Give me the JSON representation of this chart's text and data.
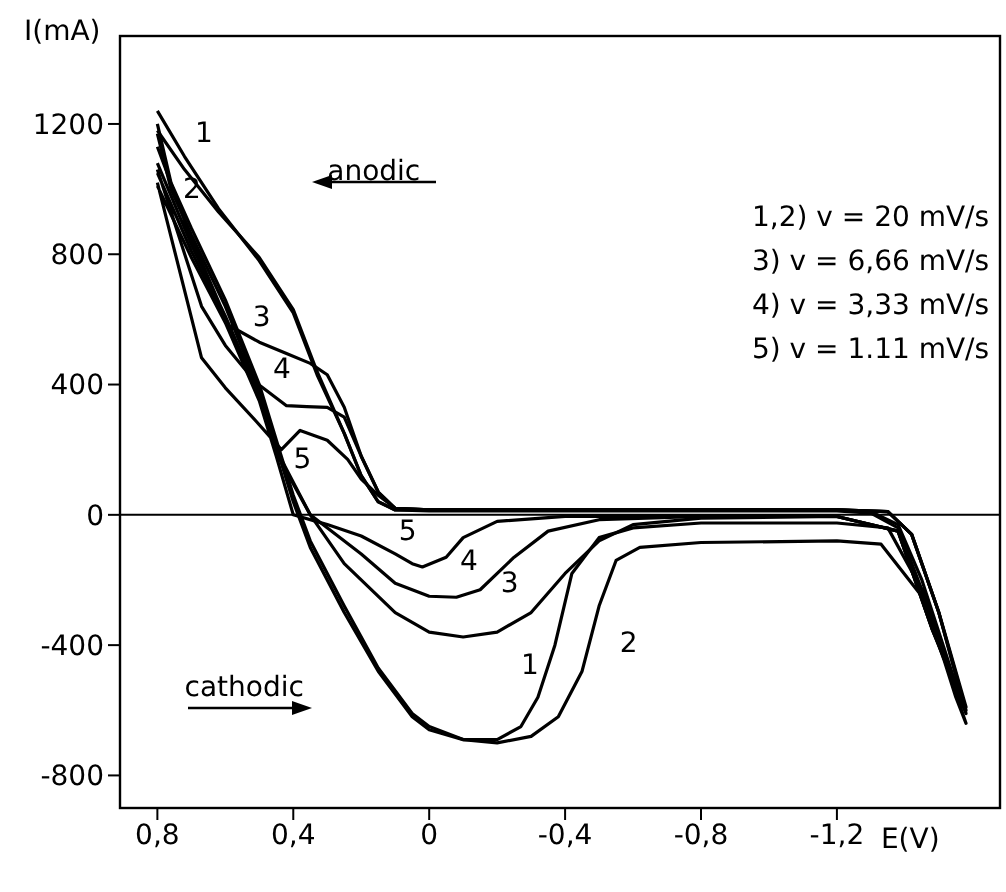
{
  "chart_data": {
    "type": "line",
    "xlabel": "E(V)",
    "ylabel": "I(mA)",
    "xlim": [
      0.91,
      -1.68
    ],
    "ylim": [
      -900,
      1470
    ],
    "xticks": [
      {
        "value": 0.8,
        "label": "0,8"
      },
      {
        "value": 0.4,
        "label": "0,4"
      },
      0,
      {
        "value": -0.4,
        "label": "-0,4"
      },
      {
        "value": -0.8,
        "label": "-0,8"
      },
      {
        "value": -1.2,
        "label": "-1,2"
      }
    ],
    "yticks": [
      -800,
      -400,
      0,
      400,
      800,
      1200
    ],
    "grid": false,
    "legend": false,
    "ref_lines": [
      {
        "axis": "y",
        "value": 0,
        "color": "#000000"
      }
    ],
    "series": [
      {
        "color": "#000000",
        "x": [
          0.8,
          0.76,
          0.7,
          0.6,
          0.5,
          0.45,
          0.4,
          0.35,
          0.25,
          0.15,
          0.05,
          0,
          -0.1,
          -0.2,
          -0.27,
          -0.32,
          -0.37,
          -0.42,
          -0.5,
          -0.6,
          -0.8,
          -1.2,
          -1.35,
          -1.45,
          -1.57,
          -1.55,
          -1.45,
          -1.38,
          -1.3,
          -1.2,
          -0.8,
          -0.4,
          0,
          0.1,
          0.15,
          0.2,
          0.25,
          0.33,
          0.4,
          0.5,
          0.62,
          0.72,
          0.8
        ],
        "values": [
          1200,
          1020,
          880,
          660,
          400,
          230,
          60,
          -80,
          -280,
          -470,
          -610,
          -650,
          -690,
          -690,
          -650,
          -560,
          -400,
          -180,
          -70,
          -40,
          -25,
          -25,
          -40,
          -230,
          -590,
          -520,
          -200,
          -30,
          10,
          15,
          15,
          15,
          15,
          15,
          40,
          120,
          250,
          430,
          620,
          780,
          940,
          1100,
          1240
        ]
      },
      {
        "color": "#000000",
        "x": [
          0.8,
          0.76,
          0.7,
          0.6,
          0.5,
          0.45,
          0.4,
          0.35,
          0.25,
          0.15,
          0.05,
          0,
          -0.1,
          -0.2,
          -0.3,
          -0.38,
          -0.45,
          -0.5,
          -0.55,
          -0.62,
          -0.8,
          -1.2,
          -1.33,
          -1.45,
          -1.58,
          -1.55,
          -1.45,
          -1.38,
          -1.3,
          -1.2,
          -0.8,
          -0.4,
          0,
          0.1,
          0.15,
          0.2,
          0.25,
          0.33,
          0.4,
          0.5,
          0.62,
          0.72,
          0.8
        ],
        "values": [
          1170,
          1000,
          860,
          640,
          380,
          210,
          40,
          -100,
          -300,
          -480,
          -620,
          -660,
          -690,
          -700,
          -680,
          -620,
          -480,
          -280,
          -140,
          -100,
          -85,
          -80,
          -90,
          -250,
          -640,
          -560,
          -230,
          -40,
          5,
          12,
          12,
          12,
          12,
          15,
          40,
          120,
          250,
          440,
          630,
          790,
          930,
          1060,
          1180
        ]
      },
      {
        "color": "#000000",
        "x": [
          0.8,
          0.7,
          0.6,
          0.5,
          0.45,
          0.35,
          0.25,
          0.1,
          0,
          -0.1,
          -0.2,
          -0.3,
          -0.4,
          -0.5,
          -0.6,
          -0.8,
          -1.2,
          -1.38,
          -1.48,
          -1.58,
          -1.5,
          -1.42,
          -1.35,
          -1.2,
          -0.4,
          0,
          0.1,
          0.15,
          0.2,
          0.25,
          0.3,
          0.35,
          0.42,
          0.5,
          0.59,
          0.7,
          0.8
        ],
        "values": [
          1080,
          830,
          610,
          370,
          200,
          0,
          -150,
          -300,
          -360,
          -375,
          -360,
          -300,
          -180,
          -80,
          -30,
          -10,
          -5,
          -50,
          -350,
          -590,
          -300,
          -60,
          10,
          15,
          15,
          15,
          20,
          70,
          180,
          330,
          430,
          465,
          495,
          530,
          582,
          850,
          1130
        ]
      },
      {
        "color": "#000000",
        "x": [
          0.8,
          0.7,
          0.6,
          0.5,
          0.45,
          0.35,
          0.2,
          0.1,
          0,
          -0.08,
          -0.15,
          -0.25,
          -0.35,
          -0.5,
          -0.8,
          -1.2,
          -1.38,
          -1.48,
          -1.58,
          -1.5,
          -1.42,
          -1.35,
          -1.2,
          -0.4,
          0,
          0.1,
          0.15,
          0.2,
          0.25,
          0.3,
          0.36,
          0.42,
          0.51,
          0.6,
          0.67,
          0.8
        ],
        "values": [
          1050,
          810,
          600,
          360,
          190,
          0,
          -120,
          -210,
          -250,
          -253,
          -230,
          -130,
          -50,
          -15,
          -5,
          -5,
          -50,
          -350,
          -600,
          -300,
          -60,
          10,
          15,
          15,
          15,
          20,
          70,
          180,
          300,
          330,
          332,
          335,
          406,
          520,
          640,
          1060
        ]
      },
      {
        "color": "#000000",
        "x": [
          0.8,
          0.7,
          0.6,
          0.5,
          0.45,
          0.4,
          0.3,
          0.2,
          0.1,
          0.05,
          0.02,
          -0.05,
          -0.1,
          -0.2,
          -0.4,
          -0.8,
          -1.2,
          -1.38,
          -1.48,
          -1.58,
          -1.5,
          -1.42,
          -1.35,
          -1.2,
          -0.4,
          0,
          0.1,
          0.15,
          0.2,
          0.24,
          0.3,
          0.38,
          0.435,
          0.51,
          0.6,
          0.67,
          0.8
        ],
        "values": [
          1010,
          790,
          590,
          350,
          180,
          0,
          -30,
          -65,
          -120,
          -150,
          -160,
          -130,
          -70,
          -20,
          -5,
          -5,
          -5,
          -50,
          -350,
          -610,
          -300,
          -60,
          10,
          15,
          15,
          15,
          20,
          60,
          110,
          170,
          229,
          259,
          200,
          288,
          390,
          482,
          1020
        ]
      }
    ],
    "annotations": [
      "1",
      "2",
      "3",
      "4",
      "5",
      "5",
      "4",
      "3",
      "1",
      "2",
      "anodic",
      "cathodic",
      "1,2) v = 20 mV/s",
      "3) v = 6,66 mV/s",
      "4) v = 3,33 mV/s",
      "5) v = 1.11 mV/s"
    ]
  }
}
